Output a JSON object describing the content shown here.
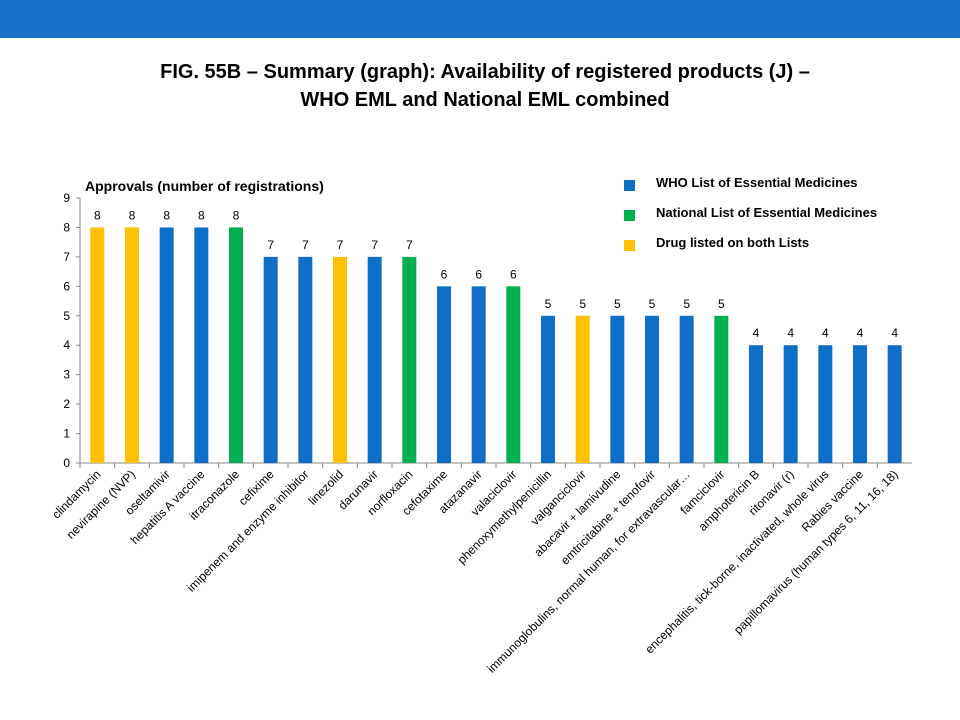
{
  "chart_data": {
    "type": "bar",
    "title": [
      "FIG. 55B – Summary (graph): Availability of registered products (J) –",
      "WHO EML and National EML combined"
    ],
    "y_label": "Approvals (number of registrations)",
    "categories": [
      "clindamycin",
      "nevirapine (NVP)",
      "oseltamivir",
      "hepatitis A vaccine",
      "itraconazole",
      "cefixime",
      "imipenem and enzyme inhibitor",
      "linezolid",
      "darunavir",
      "norfloxacin",
      "cefotaxime",
      "atazanavir",
      "valaciclovir",
      "phenoxymethylpenicillin",
      "valganciclovir",
      "abacavir + lamivudine",
      "emtricitabine + tenofovir",
      "immunoglobulins, normal human, for extravascular…",
      "famciclovir",
      "amphotericin B",
      "ritonavir (r)",
      "encephalitis, tick-borne, inactivated, whole virus",
      "Rabies vaccine",
      "papillomavirus (human types 6, 11, 16, 18)"
    ],
    "values": [
      8,
      8,
      8,
      8,
      8,
      7,
      7,
      7,
      7,
      7,
      6,
      6,
      6,
      5,
      5,
      5,
      5,
      5,
      5,
      4,
      4,
      4,
      4,
      4
    ],
    "colors": [
      "#ffc000",
      "#ffc000",
      "#0f6fc6",
      "#0f6fc6",
      "#00b050",
      "#0f6fc6",
      "#0f6fc6",
      "#ffc000",
      "#0f6fc6",
      "#00b050",
      "#0f6fc6",
      "#0f6fc6",
      "#00b050",
      "#0f6fc6",
      "#ffc000",
      "#0f6fc6",
      "#0f6fc6",
      "#0f6fc6",
      "#00b050",
      "#0f6fc6",
      "#0f6fc6",
      "#0f6fc6",
      "#0f6fc6",
      "#0f6fc6"
    ],
    "legend": [
      {
        "name": "WHO List of Essential Medicines",
        "color": "#0f6fc6"
      },
      {
        "name": "National List of Essential Medicines",
        "color": "#00b050"
      },
      {
        "name": "Drug listed on both Lists",
        "color": "#ffc000"
      }
    ],
    "ylim": [
      0,
      9
    ],
    "yticks": [
      0,
      1,
      2,
      3,
      4,
      5,
      6,
      7,
      8,
      9
    ],
    "grid": false
  }
}
